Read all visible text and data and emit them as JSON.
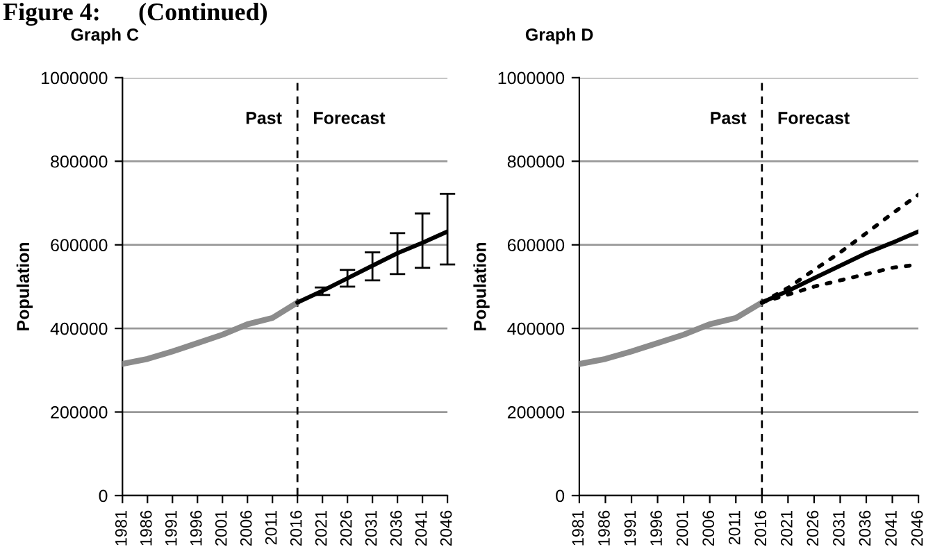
{
  "chart_data": [
    {
      "type": "line",
      "title": "Figure 4:      (Continued)",
      "subtitle": "Graph C",
      "ylabel": "Population",
      "categories": [
        "1981",
        "1986",
        "1991",
        "1996",
        "2001",
        "2006",
        "2011",
        "2016",
        "2021",
        "2026",
        "2031",
        "2036",
        "2041",
        "2046"
      ],
      "series": [
        {
          "color": "#8c8c8c",
          "values": [
            315000,
            327000,
            345000,
            365000,
            385000,
            410000,
            425000,
            462000,
            null,
            null,
            null,
            null,
            null,
            null
          ]
        },
        {
          "color": "#000000",
          "values": [
            null,
            null,
            null,
            null,
            null,
            null,
            null,
            462000,
            490000,
            520000,
            550000,
            580000,
            605000,
            632000
          ],
          "errors": [
            null,
            null,
            null,
            null,
            null,
            null,
            null,
            null,
            [
              480000,
              498000
            ],
            [
              500000,
              540000
            ],
            [
              515000,
              582000
            ],
            [
              530000,
              628000
            ],
            [
              545000,
              675000
            ],
            [
              553000,
              722000
            ]
          ]
        }
      ],
      "ylim": [
        0,
        1000000
      ],
      "yticks": [
        0,
        200000,
        400000,
        600000,
        800000,
        1000000
      ],
      "grid": "y",
      "ref_lines": [
        {
          "axis": "x",
          "value": "2016",
          "color": "#000000",
          "line_style": "dashed"
        }
      ],
      "annotations": [
        "Past",
        "Forecast"
      ]
    },
    {
      "type": "line",
      "subtitle": "Graph D",
      "ylabel": "Population",
      "categories": [
        "1981",
        "1986",
        "1991",
        "1996",
        "2001",
        "2006",
        "2011",
        "2016",
        "2021",
        "2026",
        "2031",
        "2036",
        "2041",
        "2046"
      ],
      "series": [
        {
          "color": "#8c8c8c",
          "values": [
            315000,
            327000,
            345000,
            365000,
            385000,
            410000,
            425000,
            462000,
            null,
            null,
            null,
            null,
            null,
            null
          ]
        },
        {
          "color": "#000000",
          "values": [
            null,
            null,
            null,
            null,
            null,
            null,
            null,
            462000,
            490000,
            520000,
            550000,
            580000,
            605000,
            632000
          ]
        },
        {
          "color": "#000000",
          "line_style": "dotted",
          "values": [
            null,
            null,
            null,
            null,
            null,
            null,
            null,
            462000,
            497000,
            540000,
            582000,
            628000,
            675000,
            720000
          ]
        },
        {
          "color": "#000000",
          "line_style": "dotted",
          "values": [
            null,
            null,
            null,
            null,
            null,
            null,
            null,
            462000,
            481000,
            500000,
            515000,
            530000,
            545000,
            553000
          ]
        }
      ],
      "ylim": [
        0,
        1000000
      ],
      "yticks": [
        0,
        200000,
        400000,
        600000,
        800000,
        1000000
      ],
      "grid": "y",
      "ref_lines": [
        {
          "axis": "x",
          "value": "2016",
          "color": "#000000",
          "line_style": "dashed"
        }
      ],
      "annotations": [
        "Past",
        "Forecast"
      ]
    }
  ]
}
